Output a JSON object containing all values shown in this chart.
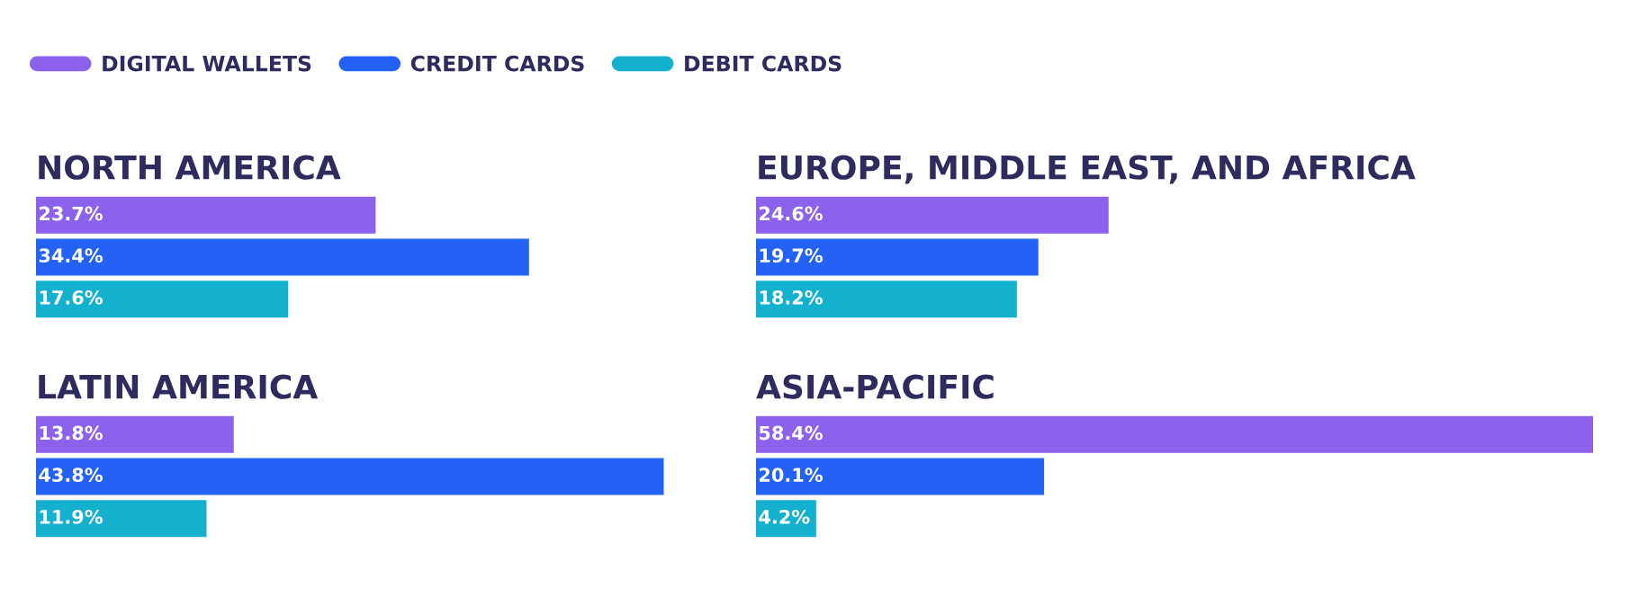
{
  "chart_data": [
    {
      "type": "bar",
      "orientation": "horizontal",
      "title": "NORTH AMERICA",
      "categories": [
        null
      ],
      "legend": "top",
      "series": [
        {
          "name": "DIGITAL WALLETS",
          "color": "#8c62ec",
          "values": [
            23.7
          ],
          "value_labels": [
            "23.7%"
          ]
        },
        {
          "name": "CREDIT CARDS",
          "color": "#2461f5",
          "values": [
            34.4
          ],
          "value_labels": [
            "34.4%"
          ]
        },
        {
          "name": "DEBIT CARDS",
          "color": "#14b1cf",
          "values": [
            17.6
          ],
          "value_labels": [
            "17.6%"
          ]
        }
      ]
    },
    {
      "type": "bar",
      "orientation": "horizontal",
      "title": "EUROPE, MIDDLE EAST, AND AFRICA",
      "categories": [
        null
      ],
      "series": [
        {
          "color": "#8c62ec",
          "values": [
            24.6
          ],
          "value_labels": [
            "24.6%"
          ]
        },
        {
          "color": "#2461f5",
          "values": [
            19.7
          ],
          "value_labels": [
            "19.7%"
          ]
        },
        {
          "color": "#14b1cf",
          "values": [
            18.2
          ],
          "value_labels": [
            "18.2%"
          ]
        }
      ]
    },
    {
      "type": "bar",
      "orientation": "horizontal",
      "title": "LATIN AMERICA",
      "categories": [
        null
      ],
      "series": [
        {
          "color": "#8c62ec",
          "values": [
            13.8
          ],
          "value_labels": [
            "13.8%"
          ]
        },
        {
          "color": "#2461f5",
          "values": [
            43.8
          ],
          "value_labels": [
            "43.8%"
          ]
        },
        {
          "color": "#14b1cf",
          "values": [
            11.9
          ],
          "value_labels": [
            "11.9%"
          ]
        }
      ]
    },
    {
      "type": "bar",
      "orientation": "horizontal",
      "title": "ASIA-PACIFIC",
      "categories": [
        null
      ],
      "series": [
        {
          "color": "#8c62ec",
          "values": [
            58.4
          ],
          "value_labels": [
            "58.4%"
          ]
        },
        {
          "color": "#2461f5",
          "values": [
            20.1
          ],
          "value_labels": [
            "20.1%"
          ]
        },
        {
          "color": "#14b1cf",
          "values": [
            4.2
          ],
          "value_labels": [
            "4.2%"
          ]
        }
      ]
    }
  ]
}
